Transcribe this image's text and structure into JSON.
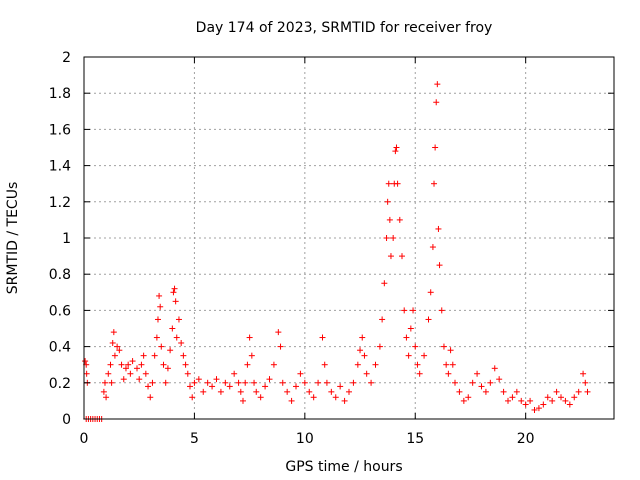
{
  "chart_data": {
    "type": "scatter",
    "title": "Day 174 of 2023, SRMTID for receiver froy",
    "xlabel": "GPS time / hours",
    "ylabel": "SRMTID / TECUs",
    "xlim": [
      0,
      24
    ],
    "ylim": [
      0,
      2
    ],
    "xticks": [
      0,
      5,
      10,
      15,
      20
    ],
    "xtick_labels": [
      "0",
      "5",
      "10",
      "15",
      "20"
    ],
    "yticks": [
      0,
      0.2,
      0.4,
      0.6,
      0.8,
      1,
      1.2,
      1.4,
      1.6,
      1.8,
      2
    ],
    "ytick_labels": [
      "0",
      "0.2",
      "0.4",
      "0.6",
      "0.8",
      "1",
      "1.2",
      "1.4",
      "1.6",
      "1.8",
      "2"
    ],
    "grid": true,
    "marker": "+",
    "color": "#ff0000",
    "series": [
      {
        "name": "SRMTID",
        "points": [
          [
            0.05,
            0.32
          ],
          [
            0.1,
            0.3
          ],
          [
            0.12,
            0.25
          ],
          [
            0.15,
            0.2
          ],
          [
            0.1,
            0.0
          ],
          [
            0.2,
            0.0
          ],
          [
            0.3,
            0.0
          ],
          [
            0.4,
            0.0
          ],
          [
            0.5,
            0.0
          ],
          [
            0.6,
            0.0
          ],
          [
            0.7,
            0.0
          ],
          [
            0.8,
            0.0
          ],
          [
            0.9,
            0.15
          ],
          [
            0.95,
            0.2
          ],
          [
            1.0,
            0.12
          ],
          [
            1.1,
            0.25
          ],
          [
            1.2,
            0.3
          ],
          [
            1.25,
            0.2
          ],
          [
            1.3,
            0.42
          ],
          [
            1.35,
            0.48
          ],
          [
            1.4,
            0.35
          ],
          [
            1.5,
            0.4
          ],
          [
            1.6,
            0.38
          ],
          [
            1.7,
            0.3
          ],
          [
            1.8,
            0.22
          ],
          [
            1.9,
            0.28
          ],
          [
            2.0,
            0.3
          ],
          [
            2.1,
            0.25
          ],
          [
            2.2,
            0.32
          ],
          [
            2.4,
            0.28
          ],
          [
            2.5,
            0.22
          ],
          [
            2.6,
            0.3
          ],
          [
            2.7,
            0.35
          ],
          [
            2.8,
            0.25
          ],
          [
            2.9,
            0.18
          ],
          [
            3.0,
            0.12
          ],
          [
            3.1,
            0.2
          ],
          [
            3.2,
            0.35
          ],
          [
            3.3,
            0.45
          ],
          [
            3.35,
            0.55
          ],
          [
            3.4,
            0.68
          ],
          [
            3.45,
            0.62
          ],
          [
            3.5,
            0.4
          ],
          [
            3.6,
            0.3
          ],
          [
            3.7,
            0.2
          ],
          [
            3.8,
            0.28
          ],
          [
            3.9,
            0.38
          ],
          [
            4.0,
            0.5
          ],
          [
            4.05,
            0.7
          ],
          [
            4.1,
            0.72
          ],
          [
            4.15,
            0.65
          ],
          [
            4.2,
            0.45
          ],
          [
            4.3,
            0.55
          ],
          [
            4.4,
            0.42
          ],
          [
            4.5,
            0.35
          ],
          [
            4.6,
            0.3
          ],
          [
            4.7,
            0.25
          ],
          [
            4.8,
            0.18
          ],
          [
            4.9,
            0.12
          ],
          [
            5.0,
            0.2
          ],
          [
            5.2,
            0.22
          ],
          [
            5.4,
            0.15
          ],
          [
            5.6,
            0.2
          ],
          [
            5.8,
            0.18
          ],
          [
            6.0,
            0.22
          ],
          [
            6.2,
            0.15
          ],
          [
            6.4,
            0.2
          ],
          [
            6.6,
            0.18
          ],
          [
            6.8,
            0.25
          ],
          [
            7.0,
            0.2
          ],
          [
            7.1,
            0.15
          ],
          [
            7.2,
            0.1
          ],
          [
            7.3,
            0.2
          ],
          [
            7.4,
            0.3
          ],
          [
            7.5,
            0.45
          ],
          [
            7.6,
            0.35
          ],
          [
            7.7,
            0.2
          ],
          [
            7.8,
            0.15
          ],
          [
            8.0,
            0.12
          ],
          [
            8.2,
            0.18
          ],
          [
            8.4,
            0.22
          ],
          [
            8.6,
            0.3
          ],
          [
            8.8,
            0.48
          ],
          [
            8.9,
            0.4
          ],
          [
            9.0,
            0.2
          ],
          [
            9.2,
            0.15
          ],
          [
            9.4,
            0.1
          ],
          [
            9.6,
            0.18
          ],
          [
            9.8,
            0.25
          ],
          [
            10.0,
            0.2
          ],
          [
            10.2,
            0.15
          ],
          [
            10.4,
            0.12
          ],
          [
            10.6,
            0.2
          ],
          [
            10.8,
            0.45
          ],
          [
            10.9,
            0.3
          ],
          [
            11.0,
            0.2
          ],
          [
            11.2,
            0.15
          ],
          [
            11.4,
            0.12
          ],
          [
            11.6,
            0.18
          ],
          [
            11.8,
            0.1
          ],
          [
            12.0,
            0.15
          ],
          [
            12.2,
            0.2
          ],
          [
            12.4,
            0.3
          ],
          [
            12.5,
            0.38
          ],
          [
            12.6,
            0.45
          ],
          [
            12.7,
            0.35
          ],
          [
            12.8,
            0.25
          ],
          [
            13.0,
            0.2
          ],
          [
            13.2,
            0.3
          ],
          [
            13.4,
            0.4
          ],
          [
            13.5,
            0.55
          ],
          [
            13.6,
            0.75
          ],
          [
            13.7,
            1.0
          ],
          [
            13.75,
            1.2
          ],
          [
            13.8,
            1.3
          ],
          [
            13.85,
            1.1
          ],
          [
            13.9,
            0.9
          ],
          [
            14.0,
            1.0
          ],
          [
            14.05,
            1.3
          ],
          [
            14.1,
            1.48
          ],
          [
            14.15,
            1.5
          ],
          [
            14.2,
            1.3
          ],
          [
            14.3,
            1.1
          ],
          [
            14.4,
            0.9
          ],
          [
            14.5,
            0.6
          ],
          [
            14.6,
            0.45
          ],
          [
            14.7,
            0.35
          ],
          [
            14.8,
            0.5
          ],
          [
            14.9,
            0.6
          ],
          [
            15.0,
            0.4
          ],
          [
            15.1,
            0.3
          ],
          [
            15.2,
            0.25
          ],
          [
            15.4,
            0.35
          ],
          [
            15.6,
            0.55
          ],
          [
            15.7,
            0.7
          ],
          [
            15.8,
            0.95
          ],
          [
            15.85,
            1.3
          ],
          [
            15.9,
            1.5
          ],
          [
            15.95,
            1.75
          ],
          [
            16.0,
            1.85
          ],
          [
            16.05,
            1.05
          ],
          [
            16.1,
            0.85
          ],
          [
            16.2,
            0.6
          ],
          [
            16.3,
            0.4
          ],
          [
            16.4,
            0.3
          ],
          [
            16.5,
            0.25
          ],
          [
            16.6,
            0.38
          ],
          [
            16.7,
            0.3
          ],
          [
            16.8,
            0.2
          ],
          [
            17.0,
            0.15
          ],
          [
            17.2,
            0.1
          ],
          [
            17.4,
            0.12
          ],
          [
            17.6,
            0.2
          ],
          [
            17.8,
            0.25
          ],
          [
            18.0,
            0.18
          ],
          [
            18.2,
            0.15
          ],
          [
            18.4,
            0.2
          ],
          [
            18.6,
            0.28
          ],
          [
            18.8,
            0.22
          ],
          [
            19.0,
            0.15
          ],
          [
            19.2,
            0.1
          ],
          [
            19.4,
            0.12
          ],
          [
            19.6,
            0.15
          ],
          [
            19.8,
            0.1
          ],
          [
            20.0,
            0.08
          ],
          [
            20.2,
            0.1
          ],
          [
            20.4,
            0.05
          ],
          [
            20.6,
            0.06
          ],
          [
            20.8,
            0.08
          ],
          [
            21.0,
            0.12
          ],
          [
            21.2,
            0.1
          ],
          [
            21.4,
            0.15
          ],
          [
            21.6,
            0.12
          ],
          [
            21.8,
            0.1
          ],
          [
            22.0,
            0.08
          ],
          [
            22.2,
            0.12
          ],
          [
            22.4,
            0.15
          ],
          [
            22.6,
            0.25
          ],
          [
            22.7,
            0.2
          ],
          [
            22.8,
            0.15
          ]
        ]
      }
    ]
  }
}
